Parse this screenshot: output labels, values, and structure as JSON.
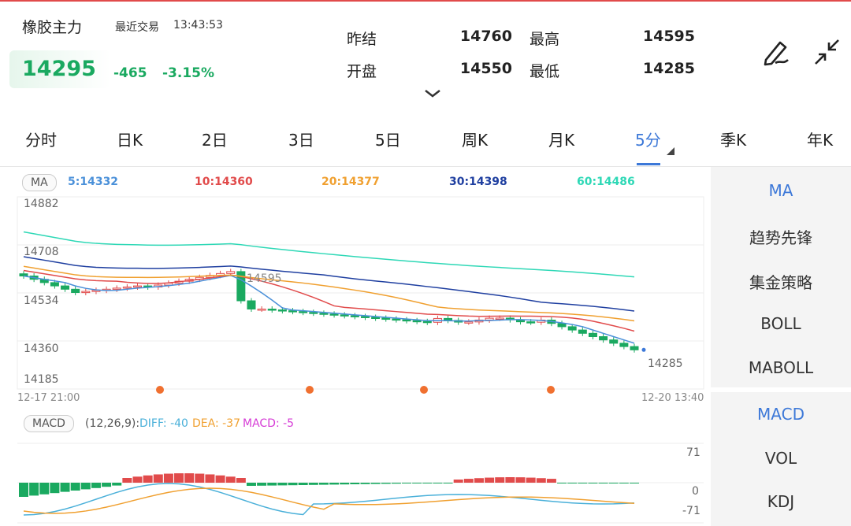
{
  "header": {
    "name": "橡胶主力",
    "trade_label": "最近交易",
    "trade_time": "13:43:53",
    "price": "14295",
    "change": "-465",
    "change_pct": "-3.15%",
    "stats": [
      {
        "label": "昨结",
        "value": "14760"
      },
      {
        "label": "开盘",
        "value": "14550"
      },
      {
        "label": "最高",
        "value": "14595"
      },
      {
        "label": "最低",
        "value": "14285"
      }
    ],
    "icons": [
      "pen-icon",
      "collapse-icon",
      "chevron-down-icon"
    ]
  },
  "colors": {
    "up": "#e14b4b",
    "down": "#1aa960",
    "accent": "#3c78d8"
  },
  "tabs": [
    {
      "label": "分时"
    },
    {
      "label": "日K"
    },
    {
      "label": "2日"
    },
    {
      "label": "3日"
    },
    {
      "label": "5日"
    },
    {
      "label": "周K"
    },
    {
      "label": "月K"
    },
    {
      "label": "5分",
      "active": true
    },
    {
      "label": "季K"
    },
    {
      "label": "年K"
    }
  ],
  "ma": {
    "pill": "MA",
    "items": [
      {
        "label": "5:14332",
        "color": "#4a90d9"
      },
      {
        "label": "10:14360",
        "color": "#e14b4b"
      },
      {
        "label": "20:14377",
        "color": "#f0a030"
      },
      {
        "label": "30:14398",
        "color": "#1f3fa0"
      },
      {
        "label": "60:14486",
        "color": "#2ed8b6"
      }
    ]
  },
  "kchart": {
    "yticks": [
      "14882",
      "14708",
      "14534",
      "14360",
      "14185"
    ],
    "x_start": "12-17 21:00",
    "x_end": "12-20 13:40",
    "high_label": "14595",
    "last_label": "14285"
  },
  "macd": {
    "pill": "MACD",
    "params": "(12,26,9):",
    "diff": "DIFF: -40",
    "dea": "DEA: -37",
    "macd": "MACD: -5",
    "ytop": "71",
    "ymid": "0",
    "ybot": "-71"
  },
  "sidebar_main": [
    "MA",
    "趋势先锋",
    "集金策略",
    "BOLL",
    "MABOLL"
  ],
  "sidebar_sub": [
    "MACD",
    "VOL",
    "KDJ"
  ]
}
